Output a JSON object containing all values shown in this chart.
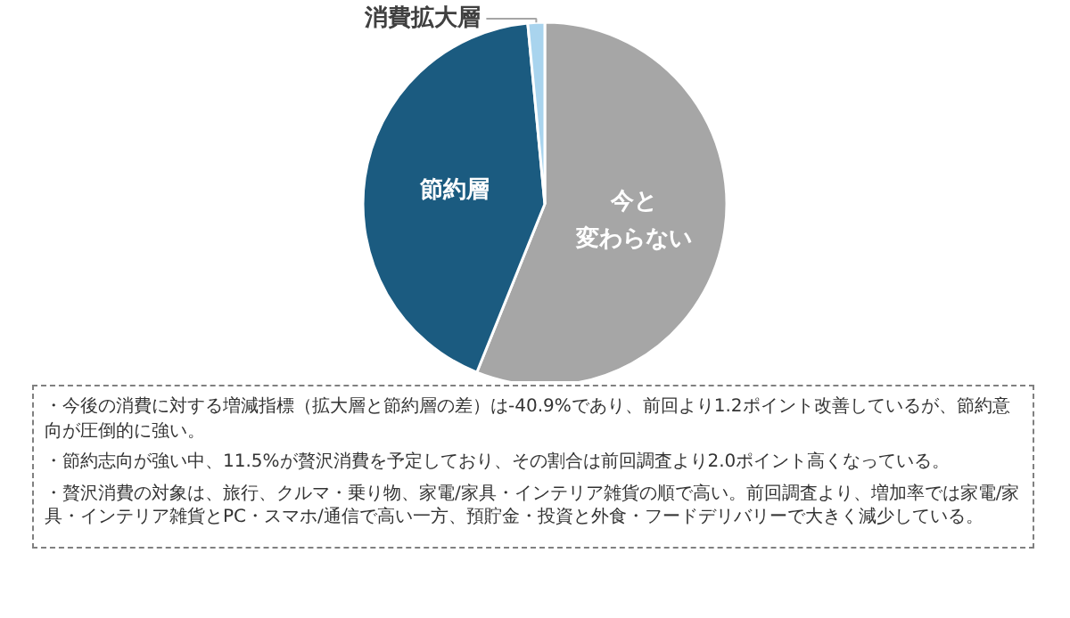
{
  "chart_data": {
    "type": "pie",
    "categories": [
      "今と変わらない",
      "節約層",
      "消費拡大層"
    ],
    "values": [
      56.1,
      42.4,
      1.5
    ],
    "colors": [
      "#a6a6a6",
      "#1b5b80",
      "#a9d4ee"
    ],
    "legend": false,
    "annotations": [
      "・今後の消費に対する増減指標（拡大層と節約層の差）は-40.9%であり、前回より1.2ポイント改善しているが、節約意向が圧倒的に強い。",
      "・節約志向が強い中、11.5%が贅沢消費を予定しており、その割合は前回調査より2.0ポイント高くなっている。",
      "・贅沢消費の対象は、旅行、クルマ・乗り物、家電/家具・インテリア雑貨の順で高い。前回調査より、増加率では家電/家具・インテリア雑貨とPC・スマホ/通信で高い一方、預貯金・投資と外食・フードデリバリーで大きく減少している。"
    ]
  }
}
